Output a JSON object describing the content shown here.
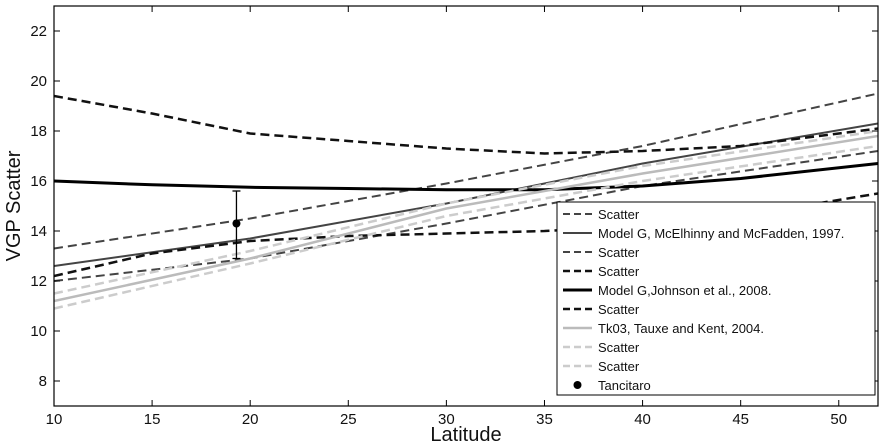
{
  "chart_data": {
    "type": "line",
    "xlabel": "Latitude",
    "ylabel": "VGP Scatter",
    "xlim": [
      10,
      52
    ],
    "ylim": [
      7,
      23
    ],
    "xticks": [
      10,
      15,
      20,
      25,
      30,
      35,
      40,
      45,
      50
    ],
    "yticks": [
      8,
      10,
      12,
      14,
      16,
      18,
      20,
      22
    ],
    "grid": false,
    "legend_position": "lower-right",
    "series": [
      {
        "name": "Scatter",
        "color": "#444444",
        "style": "dashed",
        "width": 2,
        "x": [
          10,
          20,
          30,
          40,
          52
        ],
        "y": [
          13.3,
          14.5,
          15.9,
          17.4,
          19.5
        ]
      },
      {
        "name": "Model G, McElhinny and McFadden, 1997.",
        "color": "#444444",
        "style": "solid",
        "width": 2,
        "x": [
          10,
          20,
          30,
          40,
          52
        ],
        "y": [
          12.6,
          13.7,
          15.1,
          16.7,
          18.3
        ]
      },
      {
        "name": "Scatter",
        "color": "#444444",
        "style": "dashed",
        "width": 2,
        "x": [
          10,
          20,
          30,
          40,
          52
        ],
        "y": [
          12.0,
          12.9,
          14.3,
          15.8,
          17.2
        ]
      },
      {
        "name": "Scatter",
        "color": "#111111",
        "style": "dashed",
        "width": 2.5,
        "x": [
          10,
          15,
          20,
          25,
          30,
          35,
          40,
          45,
          52
        ],
        "y": [
          19.4,
          18.7,
          17.9,
          17.6,
          17.3,
          17.1,
          17.2,
          17.4,
          18.1
        ]
      },
      {
        "name": "Model G,Johnson et al., 2008.",
        "color": "#000000",
        "style": "solid",
        "width": 3,
        "x": [
          10,
          15,
          20,
          25,
          30,
          35,
          40,
          45,
          52
        ],
        "y": [
          16.0,
          15.85,
          15.75,
          15.7,
          15.65,
          15.65,
          15.8,
          16.1,
          16.7
        ]
      },
      {
        "name": "Scatter",
        "color": "#111111",
        "style": "dashed",
        "width": 2.5,
        "x": [
          10,
          15,
          20,
          25,
          30,
          35,
          40,
          45,
          52
        ],
        "y": [
          12.2,
          13.1,
          13.6,
          13.8,
          13.9,
          14.0,
          14.2,
          14.6,
          15.5
        ]
      },
      {
        "name": "Tk03, Tauxe and Kent, 2004.",
        "color": "#bbbbbb",
        "style": "solid",
        "width": 2.5,
        "x": [
          10,
          20,
          30,
          40,
          52
        ],
        "y": [
          11.2,
          12.9,
          14.9,
          16.3,
          17.8
        ]
      },
      {
        "name": "Scatter",
        "color": "#cccccc",
        "style": "dashed",
        "width": 2.5,
        "x": [
          10,
          20,
          30,
          40,
          52
        ],
        "y": [
          11.5,
          13.2,
          15.1,
          16.6,
          18.0
        ]
      },
      {
        "name": "Scatter",
        "color": "#cccccc",
        "style": "dashed",
        "width": 2.5,
        "x": [
          10,
          20,
          30,
          40,
          52
        ],
        "y": [
          10.9,
          12.7,
          14.6,
          16.0,
          17.4
        ]
      }
    ],
    "points": [
      {
        "name": "Tancitaro",
        "x": 19.3,
        "y": 14.3,
        "error_low": 12.9,
        "error_high": 15.6,
        "color": "#000000"
      }
    ]
  }
}
